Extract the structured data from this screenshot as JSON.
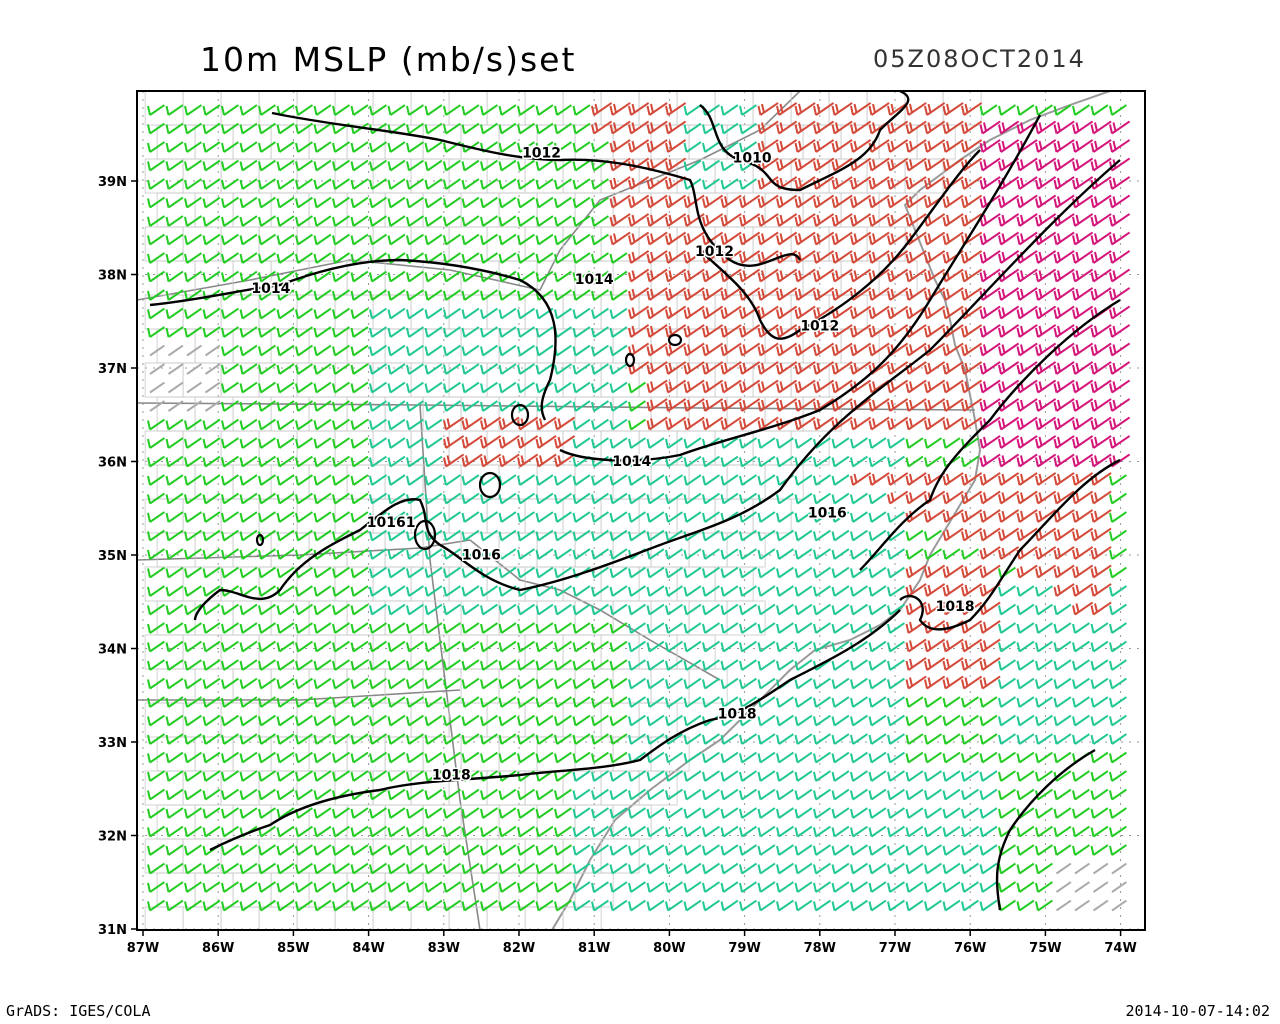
{
  "header": {
    "title": "10m MSLP (mb/s)set",
    "valid_time": "05Z08OCT2014"
  },
  "footer": {
    "left": "GrADS: IGES/COLA",
    "right": "2014-10-07-14:02"
  },
  "map": {
    "lon_range": [
      -87,
      -74
    ],
    "lat_range": [
      31,
      39.9
    ],
    "lat_labels": [
      "31N",
      "32N",
      "33N",
      "34N",
      "35N",
      "36N",
      "37N",
      "38N",
      "39N"
    ],
    "lat_values": [
      31,
      32,
      33,
      34,
      35,
      36,
      37,
      38,
      39
    ],
    "lon_labels": [
      "87W",
      "86W",
      "85W",
      "84W",
      "83W",
      "82W",
      "81W",
      "80W",
      "79W",
      "78W",
      "77W",
      "76W",
      "75W",
      "74W"
    ],
    "lon_values": [
      -87,
      -86,
      -85,
      -84,
      -83,
      -82,
      -81,
      -80,
      -79,
      -78,
      -77,
      -76,
      -75,
      -74
    ],
    "colors": {
      "light_wind": "#22cc22",
      "moderate_wind": "#22c894",
      "strong_wind": "#d44a3a",
      "very_strong_wind": "#d4157a",
      "calm": "#aaaaaa",
      "coast": "#999999",
      "isobar": "#000000"
    },
    "isobars": [
      {
        "label": "1010",
        "label_lon": -78.9,
        "label_lat": 39.2
      },
      {
        "label": "1012",
        "label_lon": -81.7,
        "label_lat": 39.25
      },
      {
        "label": "1012",
        "label_lon": -79.4,
        "label_lat": 38.2
      },
      {
        "label": "1012",
        "label_lon": -78.0,
        "label_lat": 37.4
      },
      {
        "label": "1014",
        "label_lon": -85.3,
        "label_lat": 37.8
      },
      {
        "label": "1014",
        "label_lon": -81.0,
        "label_lat": 37.9
      },
      {
        "label": "1014",
        "label_lon": -80.5,
        "label_lat": 35.95
      },
      {
        "label": "1016",
        "label_lon": -77.9,
        "label_lat": 35.4
      },
      {
        "label": "1016",
        "label_lon": -82.5,
        "label_lat": 34.95
      },
      {
        "label": "10161",
        "label_lon": -83.7,
        "label_lat": 35.3
      },
      {
        "label": "1018",
        "label_lon": -76.2,
        "label_lat": 34.4
      },
      {
        "label": "1018",
        "label_lon": -79.1,
        "label_lat": 33.25
      },
      {
        "label": "1018",
        "label_lon": -82.9,
        "label_lat": 32.6
      }
    ]
  }
}
